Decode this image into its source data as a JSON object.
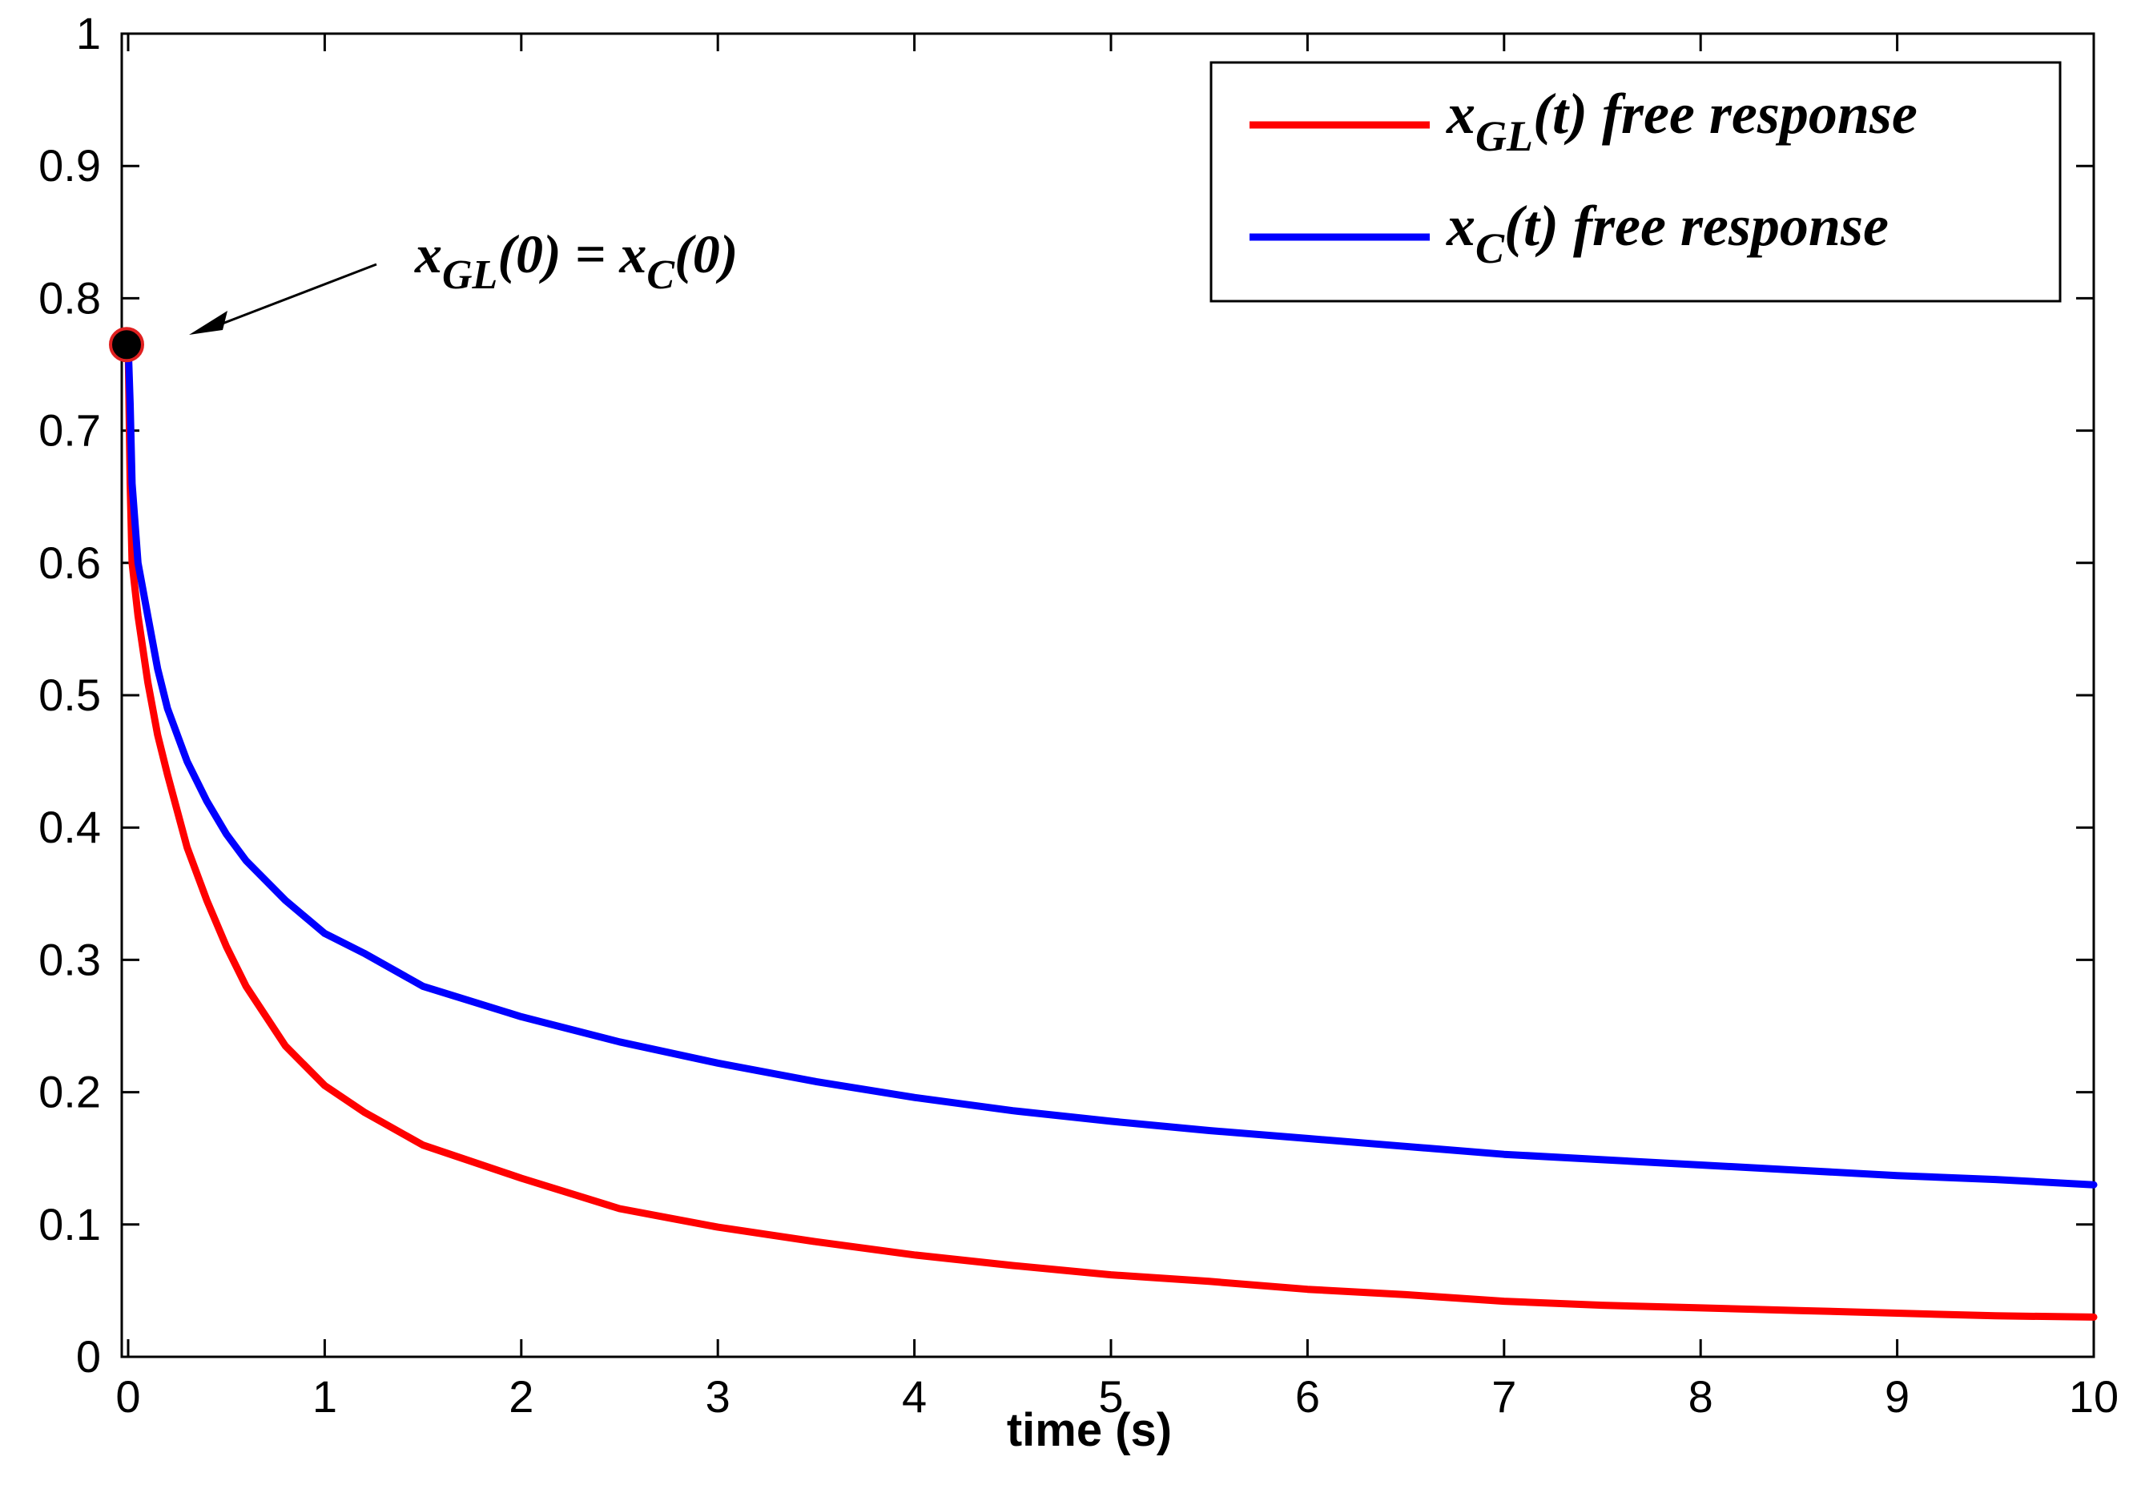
{
  "chart_data": {
    "type": "line",
    "xlabel": "time (s)",
    "ylabel": "",
    "xlim": [
      0,
      10
    ],
    "ylim": [
      0,
      1
    ],
    "xticks": [
      "0",
      "1",
      "2",
      "3",
      "4",
      "5",
      "6",
      "7",
      "8",
      "9",
      "10"
    ],
    "yticks": [
      "0",
      "0.1",
      "0.2",
      "0.3",
      "0.4",
      "0.5",
      "0.6",
      "0.7",
      "0.8",
      "0.9",
      "1"
    ],
    "grid": false,
    "legend_position": "top-right",
    "series": [
      {
        "name_base": "x",
        "name_sub": "GL",
        "name_rest": "(t) free response",
        "color": "#ff0000",
        "x": [
          0,
          0.01,
          0.02,
          0.05,
          0.1,
          0.15,
          0.2,
          0.3,
          0.4,
          0.5,
          0.6,
          0.8,
          1,
          1.2,
          1.5,
          2,
          2.5,
          3,
          3.5,
          4,
          4.5,
          5,
          5.5,
          6,
          6.5,
          7,
          7.5,
          8,
          8.5,
          9,
          9.5,
          10
        ],
        "y": [
          0.765,
          0.66,
          0.6,
          0.56,
          0.51,
          0.47,
          0.44,
          0.385,
          0.345,
          0.31,
          0.28,
          0.235,
          0.205,
          0.185,
          0.16,
          0.135,
          0.112,
          0.098,
          0.087,
          0.077,
          0.069,
          0.062,
          0.057,
          0.051,
          0.047,
          0.042,
          0.039,
          0.037,
          0.035,
          0.033,
          0.031,
          0.03
        ]
      },
      {
        "name_base": "x",
        "name_sub": "C",
        "name_rest": "(t) free response",
        "color": "#0000ff",
        "x": [
          0,
          0.01,
          0.02,
          0.05,
          0.1,
          0.15,
          0.2,
          0.3,
          0.4,
          0.5,
          0.6,
          0.8,
          1,
          1.2,
          1.5,
          2,
          2.5,
          3,
          3.5,
          4,
          4.5,
          5,
          5.5,
          6,
          6.5,
          7,
          7.5,
          8,
          8.5,
          9,
          9.5,
          10
        ],
        "y": [
          0.765,
          0.72,
          0.66,
          0.6,
          0.56,
          0.52,
          0.49,
          0.45,
          0.42,
          0.395,
          0.375,
          0.345,
          0.32,
          0.305,
          0.28,
          0.257,
          0.238,
          0.222,
          0.208,
          0.196,
          0.186,
          0.178,
          0.171,
          0.165,
          0.159,
          0.153,
          0.149,
          0.145,
          0.141,
          0.137,
          0.134,
          0.13
        ]
      }
    ],
    "annotation": {
      "lhs_base": "x",
      "lhs_sub": "GL",
      "lhs_rest": "(0) =",
      "rhs_base": "x",
      "rhs_sub": "C",
      "rhs_rest": "(0)",
      "point_x": 0,
      "point_y": 0.765
    }
  }
}
